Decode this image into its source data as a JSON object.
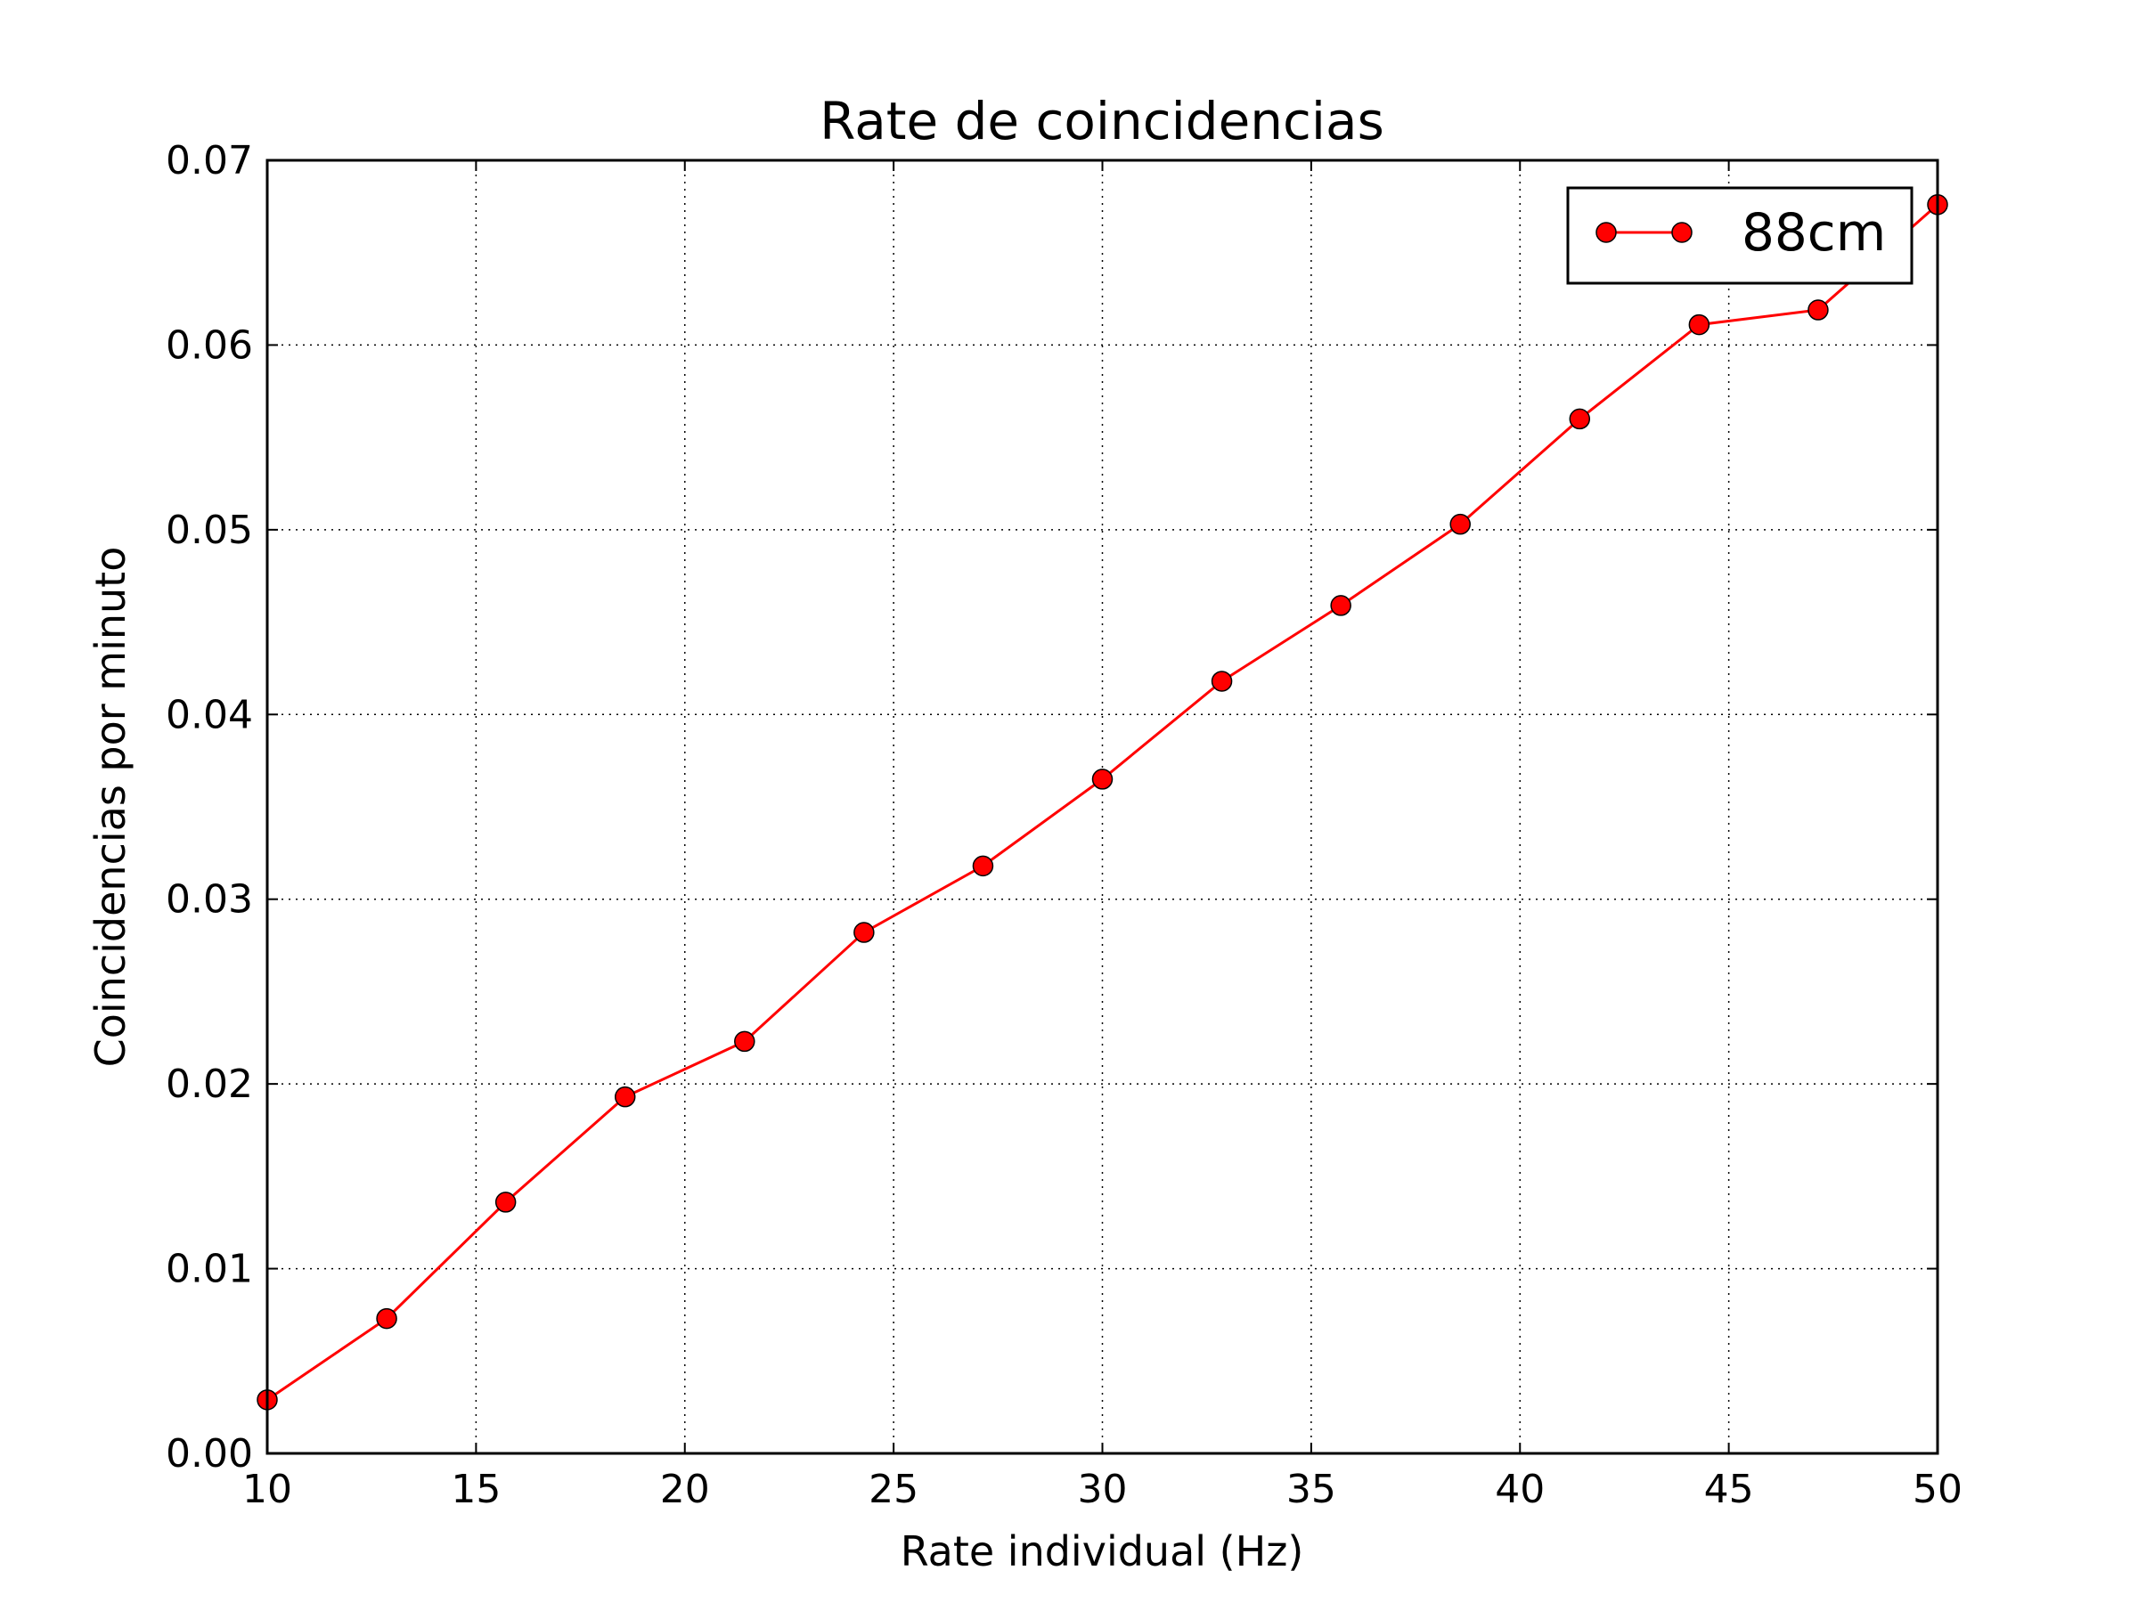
{
  "chart_data": {
    "type": "line",
    "title": "Rate de coincidencias",
    "xlabel": "Rate individual (Hz)",
    "ylabel": "Coincidencias por minuto",
    "xlim": [
      10,
      50
    ],
    "ylim": [
      0,
      0.07
    ],
    "xticks": [
      "10",
      "15",
      "20",
      "25",
      "30",
      "35",
      "40",
      "45",
      "50"
    ],
    "yticks": [
      "0.00",
      "0.01",
      "0.02",
      "0.03",
      "0.04",
      "0.05",
      "0.06",
      "0.07"
    ],
    "grid": true,
    "legend_position": "top-right",
    "series": [
      {
        "name": "88cm",
        "color": "#ff0000",
        "marker": "circle",
        "x": [
          10.0,
          12.86,
          15.71,
          18.57,
          21.43,
          24.29,
          27.14,
          30.0,
          32.86,
          35.71,
          38.57,
          41.43,
          44.29,
          47.14,
          50.0
        ],
        "y": [
          0.0029,
          0.0073,
          0.0136,
          0.0193,
          0.0223,
          0.0282,
          0.0318,
          0.0365,
          0.0418,
          0.0459,
          0.0503,
          0.056,
          0.0611,
          0.0619,
          0.0676
        ]
      }
    ]
  }
}
